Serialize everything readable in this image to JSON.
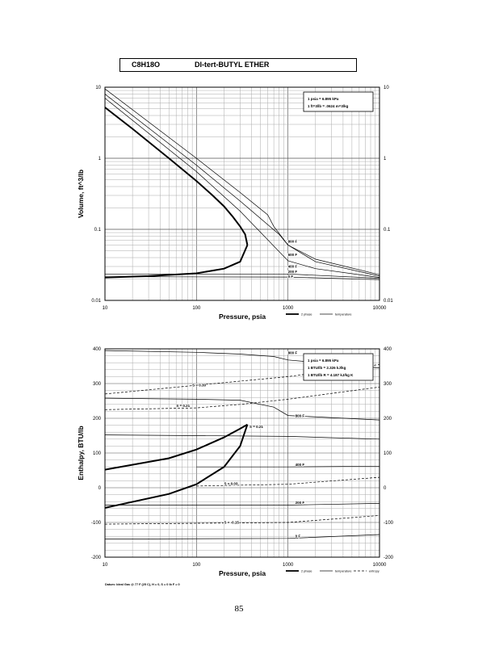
{
  "header": {
    "formula": "C8H18O",
    "name": "DI-tert-BUTYL ETHER"
  },
  "page_number": "85",
  "chart_data": [
    {
      "type": "line",
      "title": "C8H18O DI-tert-BUTYL ETHER",
      "xlabel": "Pressure, psia",
      "ylabel": "Volume, ft^3/lb",
      "xscale": "log",
      "yscale": "log",
      "xlim": [
        10,
        10000
      ],
      "ylim": [
        0.01,
        10
      ],
      "grid": true,
      "x_ticks": [
        "10",
        "100",
        "1000",
        "10000"
      ],
      "y_ticks": [
        "0.01",
        "0.1",
        "1",
        "10"
      ],
      "legend_position": "bottom-right",
      "legend": [
        {
          "label": "2 phase",
          "style": "thick"
        },
        {
          "label": "temperature",
          "style": "thin"
        }
      ],
      "note_lines": [
        "1 psia = 6.895 kPa",
        "1 ft^3/lb = .0624 m^3/kg"
      ],
      "dome": {
        "vapor": {
          "x": [
            10,
            20,
            50,
            100,
            150,
            200,
            250,
            300,
            340,
            360
          ],
          "y": [
            5.2,
            2.6,
            1.0,
            0.48,
            0.3,
            0.21,
            0.15,
            0.11,
            0.085,
            0.06
          ]
        },
        "liquid": {
          "x": [
            10,
            30,
            100,
            200,
            300,
            360
          ],
          "y": [
            0.021,
            0.022,
            0.024,
            0.028,
            0.035,
            0.06
          ]
        }
      },
      "series": [
        {
          "name": "800 F",
          "x": [
            10,
            100,
            300,
            600,
            700,
            1000,
            2000,
            10000
          ],
          "y": [
            9.5,
            1.0,
            0.33,
            0.16,
            0.11,
            0.06,
            0.038,
            0.023
          ]
        },
        {
          "name": "600 F",
          "x": [
            10,
            100,
            300,
            800,
            1000,
            2000,
            10000
          ],
          "y": [
            8.0,
            0.8,
            0.25,
            0.085,
            0.06,
            0.035,
            0.022
          ]
        },
        {
          "name": "400 F",
          "x": [
            10,
            100,
            300,
            1000,
            2000,
            10000
          ],
          "y": [
            7.0,
            0.65,
            0.18,
            0.036,
            0.028,
            0.021
          ]
        },
        {
          "name": "200 F",
          "x": [
            10,
            1000,
            10000
          ],
          "y": [
            0.0235,
            0.0235,
            0.0205
          ]
        },
        {
          "name": "0 F",
          "x": [
            10,
            1000,
            10000
          ],
          "y": [
            0.0215,
            0.0213,
            0.0196
          ]
        }
      ]
    },
    {
      "type": "line",
      "xlabel": "Pressure, psia",
      "ylabel": "Enthalpy, BTU/lb",
      "xscale": "log",
      "xlim": [
        10,
        10000
      ],
      "ylim": [
        -200,
        400
      ],
      "grid": true,
      "x_ticks": [
        "10",
        "100",
        "1000",
        "10000"
      ],
      "y_ticks": [
        "-200",
        "-100",
        "0",
        "100",
        "200",
        "300",
        "400"
      ],
      "legend_position": "bottom-right",
      "legend": [
        {
          "label": "2 phase",
          "style": "thick"
        },
        {
          "label": "temperature",
          "style": "thin"
        },
        {
          "label": "entropy",
          "style": "dashed"
        }
      ],
      "note_lines": [
        "1 psia = 6.895 kPa",
        "1 BTU/lb = 2.326 kJ/kg",
        "1 BTU/lb R = 4.187 kJ/kg K"
      ],
      "footnote": "Datum: Ideal Gas @ 77 F (25 C), H = 0, S = 0 lb F = 0",
      "dome": {
        "vapor": {
          "x": [
            10,
            50,
            100,
            200,
            300,
            360
          ],
          "y": [
            52,
            85,
            110,
            145,
            170,
            182
          ]
        },
        "liquid": {
          "x": [
            10,
            50,
            100,
            200,
            300,
            360
          ],
          "y": [
            -58,
            -18,
            10,
            60,
            120,
            182
          ]
        }
      },
      "series": [
        {
          "name": "800 F",
          "x": [
            10,
            100,
            300,
            700,
            1000,
            10000
          ],
          "y": [
            395,
            390,
            385,
            378,
            368,
            345
          ],
          "style": "thin"
        },
        {
          "name": "600 F",
          "x": [
            10,
            100,
            300,
            700,
            1000,
            10000
          ],
          "y": [
            258,
            255,
            252,
            232,
            208,
            195
          ],
          "style": "thin"
        },
        {
          "name": "600 F liquid",
          "x": [
            10,
            100,
            1000,
            10000
          ],
          "y": [
            152,
            150,
            148,
            140
          ],
          "style": "thin"
        },
        {
          "name": "400 F",
          "x": [
            100,
            1000,
            10000
          ],
          "y": [
            60,
            60,
            62
          ],
          "style": "thin"
        },
        {
          "name": "200 F",
          "x": [
            10,
            1000,
            10000
          ],
          "y": [
            -50,
            -50,
            -45
          ],
          "style": "thin"
        },
        {
          "name": "0 F",
          "x": [
            10,
            1000,
            10000
          ],
          "y": [
            -148,
            -146,
            -135
          ],
          "style": "thin"
        },
        {
          "name": "S = 0.30",
          "x": [
            10,
            100,
            1000,
            10000
          ],
          "y": [
            270,
            295,
            320,
            355
          ],
          "style": "dashed"
        },
        {
          "name": "S = 0.21",
          "x": [
            10,
            100,
            300,
            1000,
            10000
          ],
          "y": [
            225,
            230,
            240,
            255,
            290
          ],
          "style": "dashed"
        },
        {
          "name": "S = 0.03",
          "x": [
            100,
            1000,
            10000
          ],
          "y": [
            5,
            10,
            30
          ],
          "style": "dashed"
        },
        {
          "name": "S = -0.15",
          "x": [
            10,
            1000,
            10000
          ],
          "y": [
            -105,
            -100,
            -80
          ],
          "style": "dashed"
        }
      ],
      "curve_labels": [
        {
          "text": "800 F",
          "x": 1000,
          "y": 385
        },
        {
          "text": "S = 0.30",
          "x": 90,
          "y": 292
        },
        {
          "text": "S = 0.21",
          "x": 60,
          "y": 233
        },
        {
          "text": "S = 0.21",
          "x": 380,
          "y": 172
        },
        {
          "text": "800 F",
          "x": 1200,
          "y": 203
        },
        {
          "text": "400 F",
          "x": 1200,
          "y": 63
        },
        {
          "text": "S = 0.03",
          "x": 200,
          "y": 8
        },
        {
          "text": "200 F",
          "x": 1200,
          "y": -47
        },
        {
          "text": "S = -0.15",
          "x": 200,
          "y": -103
        },
        {
          "text": "0 F",
          "x": 1200,
          "y": -143
        }
      ]
    }
  ],
  "volume_curve_labels": [
    {
      "text": "800 F",
      "x": 1000,
      "y": 0.065
    },
    {
      "text": "600 F",
      "x": 1000,
      "y": 0.042
    },
    {
      "text": "400 F",
      "x": 1000,
      "y": 0.029
    },
    {
      "text": "200 F",
      "x": 1000,
      "y": 0.0245
    },
    {
      "text": "0 F",
      "x": 1000,
      "y": 0.0208
    }
  ]
}
